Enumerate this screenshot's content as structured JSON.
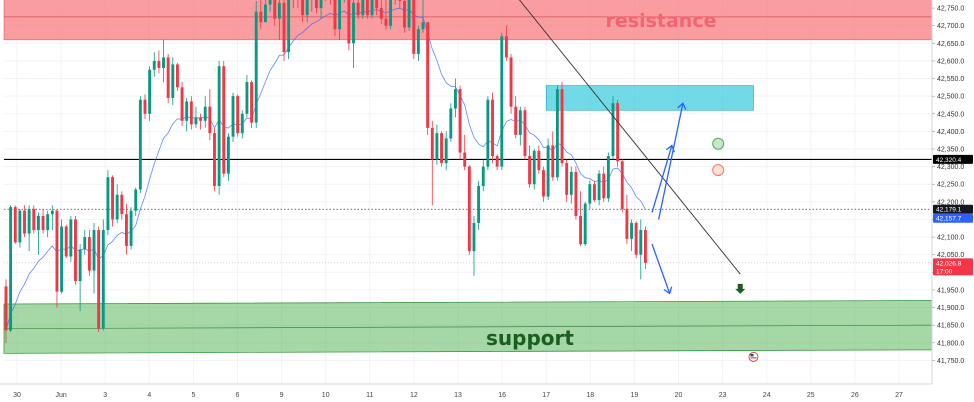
{
  "chart_data": {
    "type": "candlestick",
    "annotations": {
      "resistance_label": "resistance",
      "support_label": "support"
    },
    "y_axis": {
      "range": [
        41700,
        42790
      ],
      "tick_labels": [
        "42,750.0",
        "42,700.0",
        "42,650.0",
        "42,600.0",
        "42,550.0",
        "42,500.0",
        "42,450.0",
        "42,400.0",
        "42,350.0",
        "42,300.0",
        "42,250.0",
        "42,200.0",
        "42,150.0",
        "42,100.0",
        "42,050.0",
        "42,000.0",
        "41,950.0",
        "41,900.0",
        "41,850.0",
        "41,800.0",
        "41,750.0"
      ],
      "tick_values": [
        42750,
        42700,
        42650,
        42600,
        42550,
        42500,
        42450,
        42400,
        42350,
        42300,
        42250,
        42200,
        42150,
        42100,
        42050,
        42000,
        41950,
        41900,
        41850,
        41800,
        41750
      ]
    },
    "x_axis": {
      "tick_labels": [
        "30",
        "Jun",
        "3",
        "4",
        "5",
        "6",
        "9",
        "10",
        "11",
        "12",
        "13",
        "16",
        "17",
        "18",
        "19",
        "20",
        "23",
        "24",
        "25",
        "26",
        "27"
      ],
      "tick_positions": [
        0.0,
        1.0,
        2.0,
        3.0,
        4.0,
        5.0,
        6.0,
        7.0,
        8.0,
        9.0,
        10.0,
        11.0,
        12.0,
        13.0,
        14.0,
        15.0,
        16.0,
        17.0,
        18.0,
        19.0,
        20.0
      ]
    },
    "price_labels": [
      {
        "text": "42,320.4",
        "value": 42320.4,
        "color": "#000000"
      },
      {
        "text": "42,179.1",
        "value": 42179.1,
        "color": "#131722"
      },
      {
        "text": "42,157.7",
        "value": 42157.7,
        "color": "#2962ff"
      },
      {
        "text": "42,026.8",
        "value": 42026.8,
        "color": "#f23645"
      },
      {
        "text": "17:00",
        "value": 42010,
        "color": "#f23645"
      }
    ],
    "zones": {
      "resistance": {
        "from": 42660,
        "to": 42790,
        "color": "#f77c80"
      },
      "supply_box": {
        "from": 42460,
        "to": 42530,
        "x_from": 12.0,
        "x_to": 16.7,
        "color": "#26c6da"
      },
      "support": {
        "from_left": [
          41910,
          41770
        ],
        "to_right": [
          41920,
          41780
        ],
        "color": "#4caf50"
      }
    },
    "horizontal_levels": {
      "solid": 42320.4,
      "dotted": 42179.1,
      "red_dotted": 42026.8
    },
    "trendline": {
      "x": [
        11.35,
        16.4
      ],
      "y": [
        42780,
        41995
      ]
    },
    "projections": [
      {
        "x": [
          14.4,
          14.85,
          15.05
        ],
        "y": [
          42170,
          42360,
          42320
        ]
      },
      {
        "x": [
          14.55,
          15.1,
          15.25
        ],
        "y": [
          42150,
          42480,
          42450
        ]
      },
      {
        "x": [
          14.4,
          14.8,
          15.05
        ],
        "y": [
          42080,
          41940,
          41950
        ]
      }
    ],
    "markers": {
      "green_circle": {
        "x": 15.9,
        "y": 42365,
        "color": "#4caf50"
      },
      "red_circle": {
        "x": 15.9,
        "y": 42290,
        "color": "#f57c5a"
      },
      "down_arrow": {
        "x": 16.4,
        "y": 41950,
        "color": "#1b5e20"
      },
      "flag": {
        "x": 16.7,
        "y": 41760
      }
    },
    "candles": [
      [
        41960,
        41980,
        41800,
        41835
      ],
      [
        41835,
        42190,
        41830,
        42185
      ],
      [
        42185,
        42190,
        42080,
        42085
      ],
      [
        42085,
        42180,
        42070,
        42175
      ],
      [
        42175,
        42190,
        42100,
        42110
      ],
      [
        42110,
        42190,
        42060,
        42180
      ],
      [
        42180,
        42190,
        42110,
        42120
      ],
      [
        42120,
        42170,
        42050,
        42160
      ],
      [
        42160,
        42180,
        42110,
        42120
      ],
      [
        42120,
        42175,
        42100,
        42165
      ],
      [
        42165,
        42190,
        42120,
        42175
      ],
      [
        42175,
        42180,
        41900,
        41945
      ],
      [
        41945,
        42150,
        41940,
        42130
      ],
      [
        42130,
        42135,
        42040,
        42045
      ],
      [
        42045,
        42160,
        42030,
        42150
      ],
      [
        42150,
        42160,
        41965,
        41975
      ],
      [
        41975,
        42080,
        41890,
        42065
      ],
      [
        42065,
        42120,
        42050,
        42100
      ],
      [
        42100,
        42120,
        41990,
        42005
      ],
      [
        42005,
        42140,
        41940,
        42120
      ],
      [
        42120,
        42130,
        41830,
        41840
      ],
      [
        41840,
        42150,
        41835,
        42120
      ],
      [
        42120,
        42290,
        42105,
        42270
      ],
      [
        42270,
        42275,
        42130,
        42150
      ],
      [
        42150,
        42250,
        42140,
        42220
      ],
      [
        42220,
        42230,
        42150,
        42165
      ],
      [
        42165,
        42195,
        42050,
        42075
      ],
      [
        42075,
        42185,
        42065,
        42175
      ],
      [
        42175,
        42240,
        42160,
        42235
      ],
      [
        42235,
        42500,
        42225,
        42490
      ],
      [
        42490,
        42505,
        42435,
        42450
      ],
      [
        42450,
        42585,
        42430,
        42575
      ],
      [
        42575,
        42625,
        42555,
        42600
      ],
      [
        42600,
        42630,
        42565,
        42580
      ],
      [
        42580,
        42660,
        42540,
        42610
      ],
      [
        42610,
        42620,
        42480,
        42495
      ],
      [
        42495,
        42610,
        42475,
        42590
      ],
      [
        42590,
        42595,
        42515,
        42525
      ],
      [
        42525,
        42540,
        42415,
        42430
      ],
      [
        42430,
        42495,
        42400,
        42485
      ],
      [
        42485,
        42500,
        42405,
        42420
      ],
      [
        42420,
        42470,
        42410,
        42440
      ],
      [
        42440,
        42450,
        42405,
        42430
      ],
      [
        42430,
        42500,
        42410,
        42470
      ],
      [
        42470,
        42520,
        42375,
        42395
      ],
      [
        42395,
        42410,
        42230,
        42245
      ],
      [
        42245,
        42600,
        42220,
        42585
      ],
      [
        42585,
        42600,
        42270,
        42280
      ],
      [
        42280,
        42395,
        42260,
        42385
      ],
      [
        42385,
        42510,
        42370,
        42500
      ],
      [
        42500,
        42505,
        42385,
        42395
      ],
      [
        42395,
        42460,
        42380,
        42450
      ],
      [
        42450,
        42560,
        42440,
        42540
      ],
      [
        42540,
        42545,
        42410,
        42425
      ],
      [
        42425,
        42770,
        42410,
        42740
      ],
      [
        42740,
        42790,
        42690,
        42710
      ],
      [
        42710,
        42790,
        42710,
        42760
      ],
      [
        42760,
        42790,
        42740,
        42780
      ],
      [
        42780,
        42790,
        42700,
        42720
      ],
      [
        42720,
        42785,
        42660,
        42765
      ],
      [
        42765,
        42785,
        42600,
        42625
      ],
      [
        42625,
        42785,
        42605,
        42775
      ],
      [
        42775,
        42790,
        42750,
        42780
      ],
      [
        42780,
        42790,
        42750,
        42775
      ],
      [
        42775,
        42790,
        42710,
        42730
      ],
      [
        42730,
        42790,
        42710,
        42775
      ],
      [
        42775,
        42790,
        42740,
        42785
      ],
      [
        42785,
        42790,
        42735,
        42750
      ],
      [
        42750,
        42790,
        42720,
        42775
      ],
      [
        42775,
        42790,
        42770,
        42785
      ],
      [
        42785,
        42790,
        42760,
        42780
      ],
      [
        42780,
        42790,
        42670,
        42690
      ],
      [
        42690,
        42790,
        42660,
        42775
      ],
      [
        42775,
        42790,
        42765,
        42785
      ],
      [
        42785,
        42790,
        42630,
        42650
      ],
      [
        42650,
        42790,
        42580,
        42765
      ],
      [
        42765,
        42790,
        42720,
        42730
      ],
      [
        42730,
        42790,
        42720,
        42780
      ],
      [
        42780,
        42790,
        42720,
        42730
      ],
      [
        42730,
        42790,
        42720,
        42780
      ],
      [
        42780,
        42790,
        42730,
        42750
      ],
      [
        42750,
        42790,
        42705,
        42720
      ],
      [
        42720,
        42790,
        42690,
        42700
      ],
      [
        42700,
        42790,
        42690,
        42780
      ],
      [
        42780,
        42790,
        42760,
        42780
      ],
      [
        42780,
        42790,
        42750,
        42770
      ],
      [
        42770,
        42790,
        42680,
        42695
      ],
      [
        42695,
        42790,
        42685,
        42775
      ],
      [
        42775,
        42790,
        42605,
        42620
      ],
      [
        42620,
        42700,
        42600,
        42690
      ],
      [
        42690,
        42790,
        42680,
        42710
      ],
      [
        42710,
        42710,
        42390,
        42410
      ],
      [
        42410,
        42430,
        42190,
        42320
      ],
      [
        42320,
        42420,
        42305,
        42395
      ],
      [
        42395,
        42400,
        42300,
        42310
      ],
      [
        42310,
        42400,
        42290,
        42380
      ],
      [
        42380,
        42480,
        42370,
        42465
      ],
      [
        42465,
        42550,
        42440,
        42520
      ],
      [
        42520,
        42530,
        42320,
        42340
      ],
      [
        42340,
        42390,
        42290,
        42300
      ],
      [
        42300,
        42305,
        42050,
        42060
      ],
      [
        42060,
        42160,
        41990,
        42140
      ],
      [
        42140,
        42260,
        42120,
        42245
      ],
      [
        42245,
        42320,
        42230,
        42300
      ],
      [
        42300,
        42500,
        42290,
        42490
      ],
      [
        42490,
        42510,
        42310,
        42330
      ],
      [
        42330,
        42335,
        42290,
        42300
      ],
      [
        42300,
        42680,
        42290,
        42670
      ],
      [
        42670,
        42700,
        42600,
        42610
      ],
      [
        42610,
        42620,
        42450,
        42470
      ],
      [
        42470,
        42500,
        42380,
        42390
      ],
      [
        42390,
        42470,
        42360,
        42460
      ],
      [
        42460,
        42470,
        42320,
        42330
      ],
      [
        42330,
        42360,
        42240,
        42250
      ],
      [
        42250,
        42350,
        42235,
        42345
      ],
      [
        42345,
        42360,
        42280,
        42290
      ],
      [
        42290,
        42300,
        42200,
        42215
      ],
      [
        42215,
        42380,
        42205,
        42360
      ],
      [
        42360,
        42400,
        42260,
        42270
      ],
      [
        42270,
        42530,
        42260,
        42520
      ],
      [
        42520,
        42540,
        42300,
        42310
      ],
      [
        42310,
        42320,
        42200,
        42220
      ],
      [
        42220,
        42300,
        42195,
        42285
      ],
      [
        42285,
        42300,
        42150,
        42160
      ],
      [
        42160,
        42230,
        42075,
        42080
      ],
      [
        42080,
        42200,
        42075,
        42195
      ],
      [
        42195,
        42260,
        42180,
        42250
      ],
      [
        42250,
        42260,
        42200,
        42205
      ],
      [
        42205,
        42290,
        42190,
        42280
      ],
      [
        42280,
        42300,
        42200,
        42210
      ],
      [
        42210,
        42340,
        42200,
        42330
      ],
      [
        42330,
        42500,
        42320,
        42480
      ],
      [
        42480,
        42490,
        42300,
        42315
      ],
      [
        42315,
        42320,
        42170,
        42180
      ],
      [
        42180,
        42220,
        42080,
        42095
      ],
      [
        42095,
        42150,
        42060,
        42140
      ],
      [
        42140,
        42145,
        42040,
        42050
      ],
      [
        42050,
        42150,
        41980,
        42120
      ],
      [
        42120,
        42130,
        42010,
        42026.8
      ]
    ]
  }
}
